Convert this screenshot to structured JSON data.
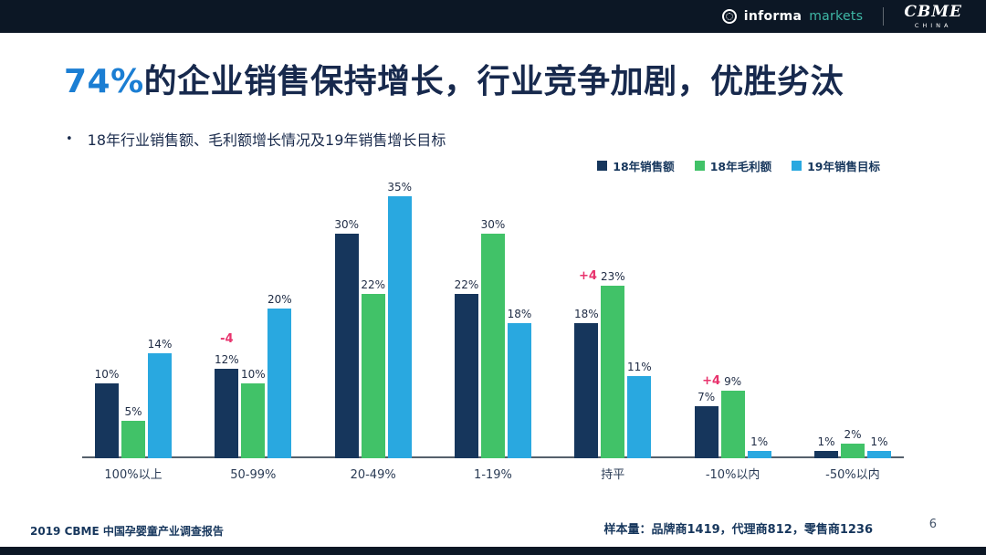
{
  "header": {
    "informa": "informa",
    "markets": "markets",
    "cbme": "CBME",
    "china": "CHINA"
  },
  "title": {
    "highlight": "74%",
    "rest": "的企业销售保持增长，行业竞争加剧，优胜劣汰"
  },
  "bullet_glyph": "•",
  "chart_data": {
    "type": "bar",
    "title": "18年行业销售额、毛利额增长情况及19年销售增长目标",
    "categories": [
      "100%以上",
      "50-99%",
      "20-49%",
      "1-19%",
      "持平",
      "-10%以内",
      "-50%以内"
    ],
    "series": [
      {
        "name": "18年销售额",
        "color": "#16365C",
        "values": [
          10,
          12,
          30,
          22,
          18,
          7,
          1
        ]
      },
      {
        "name": "18年毛利额",
        "color": "#41C268",
        "values": [
          5,
          10,
          22,
          30,
          23,
          9,
          2
        ]
      },
      {
        "name": "19年销售目标",
        "color": "#29A8E0",
        "values": [
          14,
          20,
          35,
          18,
          11,
          1,
          1
        ]
      }
    ],
    "value_suffix": "%",
    "annotations": [
      {
        "category_index": 1,
        "series_index": 0,
        "text": "-4",
        "color": "#E8336D",
        "position": "above"
      },
      {
        "category_index": 4,
        "series_index": 1,
        "text": "+4",
        "color": "#E8336D",
        "position": "left"
      },
      {
        "category_index": 5,
        "series_index": 1,
        "text": "+4",
        "color": "#E8336D",
        "position": "left"
      }
    ],
    "ylim": [
      0,
      35
    ],
    "grid": false,
    "legend_position": "top-right",
    "xlabel": "",
    "ylabel": ""
  },
  "footer": {
    "left": "2019 CBME 中国孕婴童产业调查报告",
    "right": "样本量：品牌商1419，代理商812，零售商1236",
    "page_number": "6"
  },
  "colors": {
    "title_highlight": "#1B7ED3",
    "title_text": "#17294D",
    "annotation_pink": "#E8336D",
    "brand_bar": "#0C1725",
    "markets_accent": "#3FB8A6"
  }
}
